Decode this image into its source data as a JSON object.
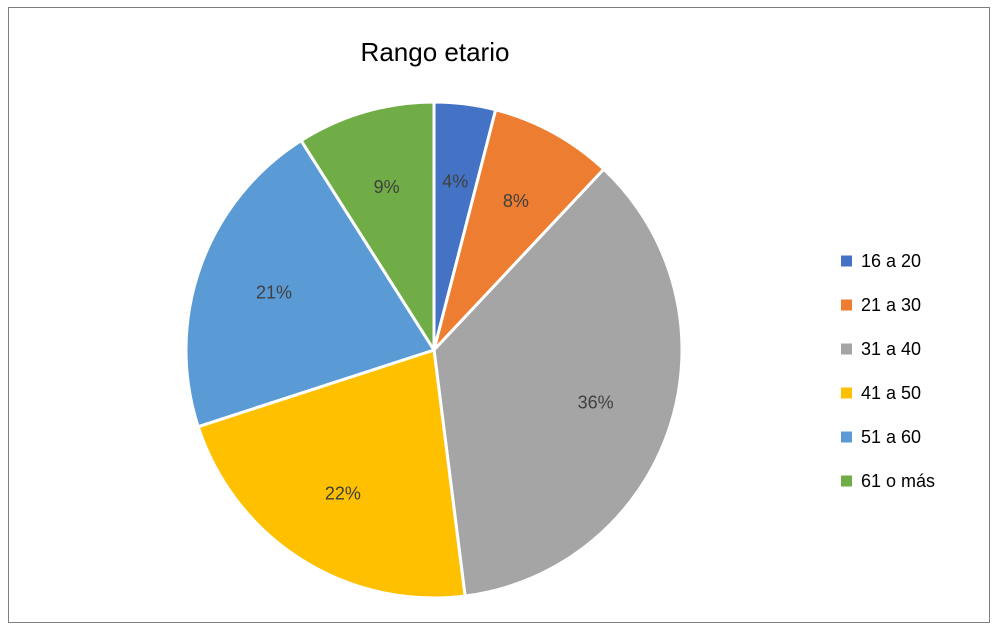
{
  "chart_data": {
    "type": "pie",
    "title": "Rango etario",
    "categories": [
      "16 a 20",
      "21 a 30",
      "31 a 40",
      "41 a 50",
      "51 a 60",
      "61 o más"
    ],
    "values": [
      4,
      8,
      36,
      22,
      21,
      9
    ],
    "value_labels": [
      "4%",
      "8%",
      "36%",
      "22%",
      "21%",
      "9%"
    ],
    "colors": [
      "#4472C4",
      "#ED7D31",
      "#A5A5A5",
      "#FFC000",
      "#5B9BD5",
      "#70AD47"
    ],
    "legend": "right",
    "start_angle": "top",
    "direction": "clockwise"
  }
}
